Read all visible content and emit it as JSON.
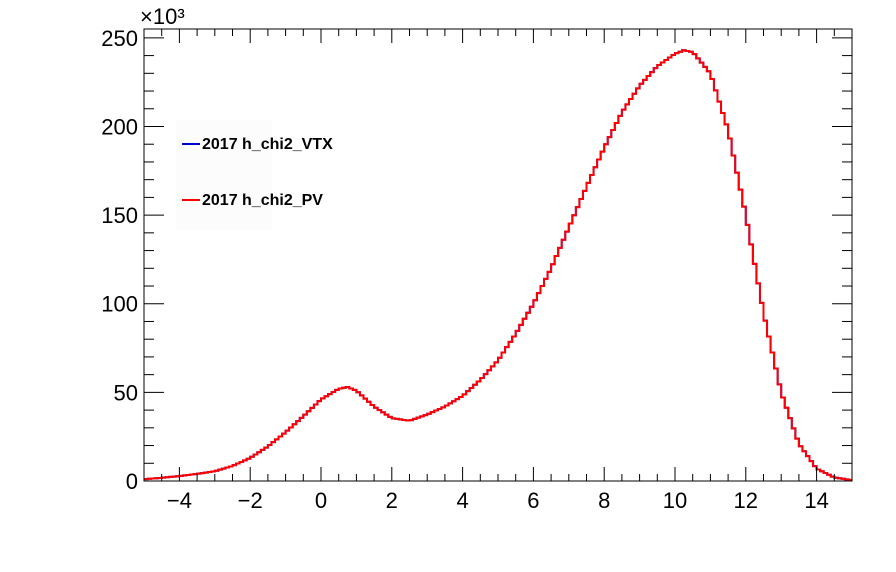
{
  "chart_data": {
    "type": "line",
    "title": "",
    "xlabel": "",
    "ylabel": "",
    "xlim": [
      -5,
      15
    ],
    "ylim": [
      0,
      255000
    ],
    "y_exponent_label": "×10³",
    "x_ticks": [
      -4,
      -2,
      0,
      2,
      4,
      6,
      8,
      10,
      12,
      14
    ],
    "x_tick_labels": [
      "−4",
      "−2",
      "0",
      "2",
      "4",
      "6",
      "8",
      "10",
      "12",
      "14"
    ],
    "y_ticks": [
      0,
      50000,
      100000,
      150000,
      200000,
      250000
    ],
    "y_tick_labels": [
      "0",
      "50",
      "100",
      "150",
      "200",
      "250"
    ],
    "grid": false,
    "legend_position": "upper-left",
    "series": [
      {
        "name": "2017 h_chi2_VTX",
        "color": "#0000cc",
        "style": "step",
        "x": [
          -5,
          -4.5,
          -4,
          -3.5,
          -3,
          -2.5,
          -2,
          -1.5,
          -1,
          -0.5,
          0,
          0.5,
          0.75,
          1,
          1.5,
          2,
          2.5,
          3,
          3.5,
          4,
          4.5,
          5,
          5.5,
          6,
          6.5,
          7,
          7.5,
          8,
          8.5,
          9,
          9.5,
          10,
          10.25,
          10.5,
          11,
          11.5,
          12,
          12.5,
          13,
          13.5,
          14,
          14.5,
          15
        ],
        "y": [
          1000,
          1800,
          2800,
          4000,
          5500,
          8500,
          13000,
          19500,
          27500,
          36500,
          46000,
          52000,
          53000,
          51000,
          42000,
          35500,
          34000,
          37500,
          42000,
          48000,
          57000,
          68000,
          83000,
          100000,
          120000,
          143000,
          166000,
          188000,
          208000,
          223000,
          234000,
          241000,
          243000,
          242000,
          230000,
          198000,
          150000,
          95000,
          50000,
          21000,
          7000,
          2000,
          500
        ]
      },
      {
        "name": "2017 h_chi2_PV",
        "color": "#ff0000",
        "style": "step",
        "x": [
          -5,
          -4.5,
          -4,
          -3.5,
          -3,
          -2.5,
          -2,
          -1.5,
          -1,
          -0.5,
          0,
          0.5,
          0.75,
          1,
          1.5,
          2,
          2.5,
          3,
          3.5,
          4,
          4.5,
          5,
          5.5,
          6,
          6.5,
          7,
          7.5,
          8,
          8.5,
          9,
          9.5,
          10,
          10.25,
          10.5,
          11,
          11.5,
          12,
          12.5,
          13,
          13.5,
          14,
          14.5,
          15
        ],
        "y": [
          1000,
          1800,
          2800,
          4000,
          5500,
          8500,
          13000,
          19500,
          27500,
          36500,
          46000,
          52000,
          53000,
          51000,
          42000,
          35500,
          34000,
          37500,
          42000,
          48000,
          57000,
          68000,
          83000,
          100000,
          120000,
          143000,
          166000,
          188000,
          208000,
          223000,
          234000,
          241000,
          243000,
          242000,
          230000,
          198000,
          150000,
          95000,
          50000,
          21000,
          7000,
          2000,
          500
        ]
      }
    ]
  }
}
